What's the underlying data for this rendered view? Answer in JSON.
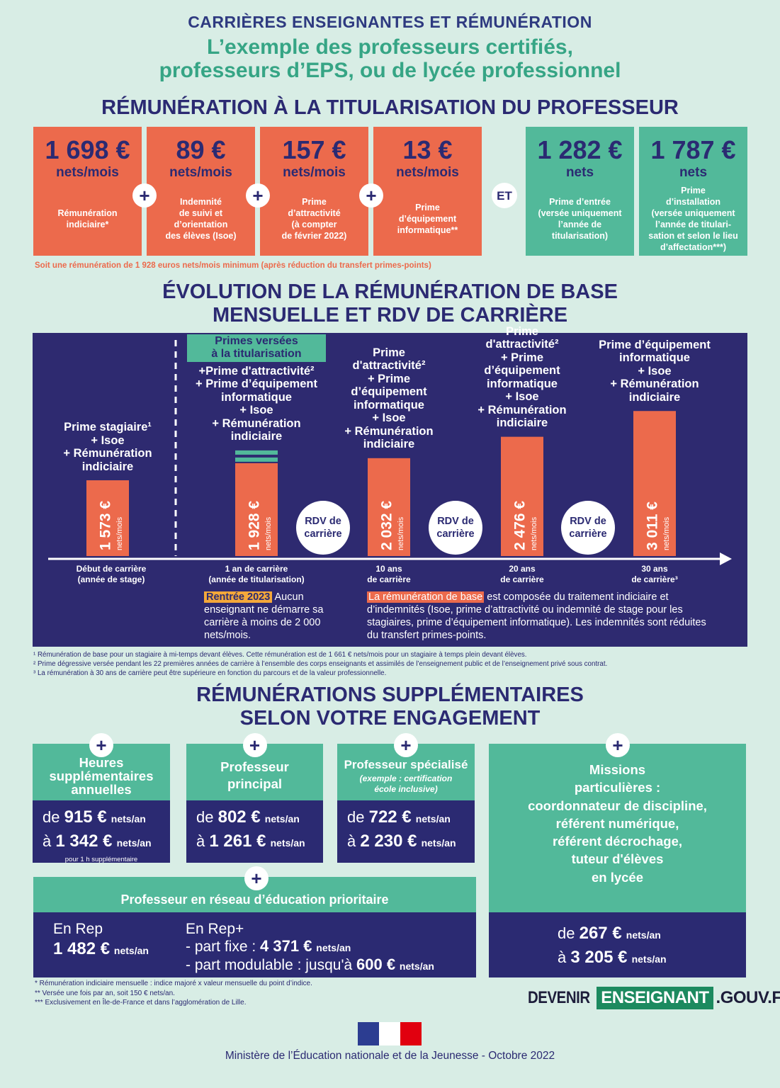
{
  "header": {
    "kicker": "CARRIÈRES ENSEIGNANTES ET RÉMUNÉRATION",
    "title": [
      "L’exemple des professeurs certifiés,",
      "professeurs d’EPS, ou de lycée professionnel"
    ]
  },
  "pay_at_tenure": {
    "title": "RÉMUNÉRATION À LA TITULARISATION DU PROFESSEUR",
    "plus": "+",
    "and": "ET",
    "items": [
      {
        "amount": "1 698 €",
        "unit": "nets/mois",
        "desc": [
          "Rémunération",
          "indiciaire*"
        ]
      },
      {
        "amount": "89 €",
        "unit": "nets/mois",
        "desc": [
          "Indemnité",
          "de suivi et",
          "d’orientation",
          "des élèves (Isoe)"
        ]
      },
      {
        "amount": "157 €",
        "unit": "nets/mois",
        "desc": [
          "Prime",
          "d’attractivité",
          "(à compter",
          "de février 2022)"
        ]
      },
      {
        "amount": "13 €",
        "unit": "nets/mois",
        "desc": [
          "Prime",
          "d’équipement",
          "informatique**"
        ]
      }
    ],
    "bonuses": [
      {
        "amount": "1 282 €",
        "unit": "nets",
        "desc": [
          "Prime d’entrée",
          "(versée uniquement",
          "l’année de",
          "titularisation)"
        ]
      },
      {
        "amount": "1 787 €",
        "unit": "nets",
        "desc": [
          "Prime",
          "d’installation",
          "(versée uniquement",
          "l’année de titulari-",
          "sation et selon le lieu",
          "d’affectation***)"
        ]
      }
    ],
    "note": "Soit une rémunération de 1 928 euros nets/mois minimum (après réduction du transfert primes-points)"
  },
  "evolution": {
    "title": [
      "ÉVOLUTION DE LA RÉMUNÉRATION DE BASE",
      "MENSUELLE ET RDV DE CARRIÈRE"
    ],
    "bars": {
      "values": [
        1573,
        1928,
        2032,
        2476,
        3011
      ],
      "value_labels": [
        "1 573 €",
        "1 928 €",
        "2 032 €",
        "2 476 €",
        "3 011 €"
      ],
      "unit": "nets/mois",
      "color": "#ec6a4c"
    },
    "banner": [
      "Primes versées",
      "à la titularisation"
    ],
    "captions": [
      [
        "Prime stagiaire¹",
        "+ Isoe",
        "+ Rémunération",
        "indiciaire"
      ],
      [
        "+Prime d'attractivité²",
        "+ Prime d’équipement",
        "informatique",
        "+ Isoe",
        "+ Rémunération",
        "indiciaire"
      ],
      [
        "Prime",
        "d'attractivité²",
        "+ Prime",
        "d’équipement",
        "informatique",
        "+ Isoe",
        "+ Rémunération",
        "indiciaire"
      ],
      [
        "Prime",
        "d'attractivité²",
        "+ Prime",
        "d’équipement",
        "informatique",
        "+ Isoe",
        "+ Rémunération",
        "indiciaire"
      ],
      [
        "Prime d’équipement",
        "informatique",
        "+ Isoe",
        "+ Rémunération",
        "indiciaire"
      ]
    ],
    "axis_labels": [
      [
        "Début de carrière",
        "(année de stage)"
      ],
      [
        "1 an de carrière",
        "(année de titularisation)"
      ],
      [
        "10 ans",
        "de carrière"
      ],
      [
        "20 ans",
        "de carrière"
      ],
      [
        "30 ans",
        "de carrière³"
      ]
    ],
    "rdv": [
      "RDV de carrière",
      "RDV de carrière",
      "RDV de carrière"
    ],
    "note_left": {
      "highlight": "Rentrée 2023",
      "text": "Aucun enseignant ne démarre sa carrière à moins de 2 000 nets/mois."
    },
    "note_right": {
      "highlight": "La rémunération de base",
      "text": "est composée du traitement indiciaire et d’indemnités (Isoe, prime d’attractivité ou indemnité de stage pour les stagiaires, prime d’équipement informatique). Les indemnités sont réduites du transfert primes-points."
    },
    "footnotes": [
      "¹ Rémunération de base pour un stagiaire à mi-temps devant élèves. Cette rémunération est de 1 661 € nets/mois pour un stagiaire à temps plein devant élèves.",
      "² Prime dégressive versée pendant les 22 premières années de carrière à l’ensemble des corps enseignants et assimilés de l’enseignement public et de l’enseignement privé sous contrat.",
      "³ La rémunération à 30 ans de carrière peut être supérieure en fonction du parcours et de la valeur professionnelle."
    ]
  },
  "extras": {
    "title": [
      "RÉMUNÉRATIONS SUPPLÉMENTAIRES",
      "SELON VOTRE ENGAGEMENT"
    ],
    "plus": "+",
    "cards": [
      {
        "title": [
          "Heures",
          "supplémentaires",
          "annuelles"
        ],
        "from": {
          "prefix": "de",
          "amount": "915 €",
          "unit": "nets/an"
        },
        "to": {
          "prefix": "à",
          "amount": "1 342 €",
          "unit": "nets/an"
        },
        "note": "pour 1 h supplémentaire"
      },
      {
        "title": [
          "Professeur",
          "principal"
        ],
        "from": {
          "prefix": "de",
          "amount": "802 €",
          "unit": "nets/an"
        },
        "to": {
          "prefix": "à",
          "amount": "1 261 €",
          "unit": "nets/an"
        }
      },
      {
        "title": [
          "Professeur spécialisé"
        ],
        "subtitle": [
          "(exemple : certification",
          "école inclusive)"
        ],
        "from": {
          "prefix": "de",
          "amount": "722 €",
          "unit": "nets/an"
        },
        "to": {
          "prefix": "à",
          "amount": "2 230 €",
          "unit": "nets/an"
        }
      }
    ],
    "rep": {
      "title": "Professeur en réseau d’éducation prioritaire",
      "rep": {
        "label": "En Rep",
        "amount": "1 482 €",
        "unit": "nets/an"
      },
      "rep_plus": {
        "label": "En Rep+",
        "fixed": {
          "prefix": "- part fixe :",
          "amount": "4 371 €",
          "unit": "nets/an"
        },
        "modulable": {
          "prefix": "- part modulable : jusqu'à",
          "amount": "600 €",
          "unit": "nets/an"
        }
      }
    },
    "missions": {
      "title": [
        "Missions",
        "particulières :",
        "coordonnateur de discipline,",
        "référent numérique,",
        "référent décrochage,",
        "tuteur d'élèves",
        "en lycée"
      ],
      "from": {
        "prefix": "de",
        "amount": "267 €",
        "unit": "nets/an"
      },
      "to": {
        "prefix": "à",
        "amount": "3 205 €",
        "unit": "nets/an"
      }
    }
  },
  "footnotes": [
    "* Rémunération indiciaire mensuelle : indice majoré x valeur mensuelle du point d’indice.",
    "** Versée une fois par an, soit 150 € nets/an.",
    "*** Exclusivement en Île-de-France et dans l’agglomération de Lille."
  ],
  "brand": [
    "DEVENIR",
    "ENSEIGNANT",
    ".GOUV.FR"
  ],
  "footer": "Ministère de l’Éducation nationale et de la Jeunesse - Octobre 2022"
}
